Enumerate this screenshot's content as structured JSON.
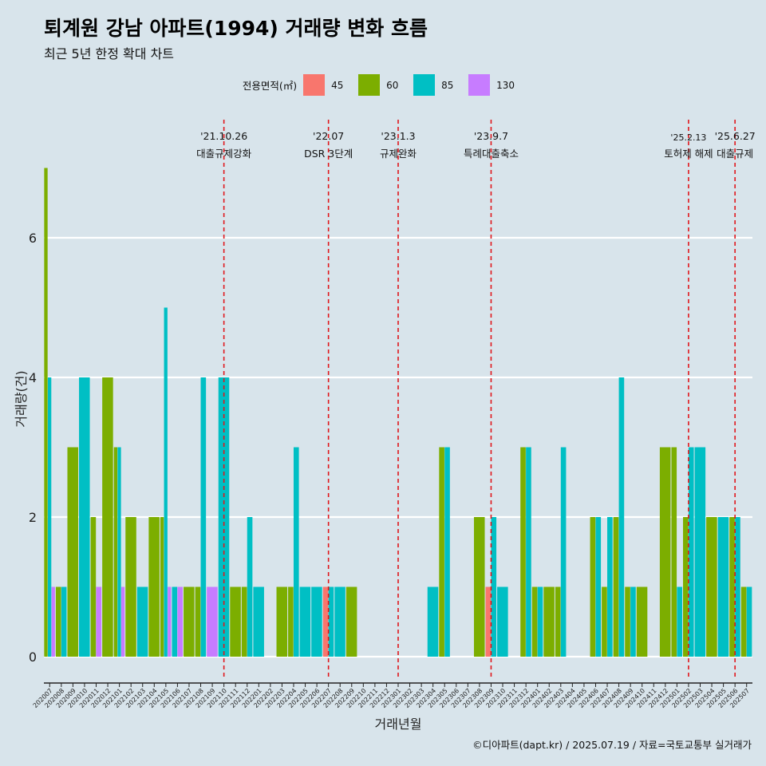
{
  "title": "퇴계원 강남 아파트(1994) 거래량 변화 흐름",
  "subtitle": "최근 5년 한정 확대 차트",
  "caption": "©디아파트(dapt.kr) / 2025.07.19 / 자료=국토교통부 실거래가",
  "legend": {
    "title": "전용면적(㎡)",
    "items": [
      {
        "label": "45",
        "color": "#f8766d"
      },
      {
        "label": "60",
        "color": "#7cae00"
      },
      {
        "label": "85",
        "color": "#00bfc4"
      },
      {
        "label": "130",
        "color": "#c77cff"
      }
    ]
  },
  "chart_data": {
    "type": "bar",
    "xlabel": "거래년월",
    "ylabel": "거래량(건)",
    "yticks": [
      0,
      2,
      4,
      6
    ],
    "ylim": [
      0,
      7
    ],
    "categories": [
      "202007",
      "202008",
      "202009",
      "202010",
      "202011",
      "202012",
      "202101",
      "202102",
      "202103",
      "202104",
      "202105",
      "202106",
      "202107",
      "202108",
      "202109",
      "202110",
      "202111",
      "202112",
      "202201",
      "202202",
      "202203",
      "202204",
      "202205",
      "202206",
      "202207",
      "202208",
      "202209",
      "202210",
      "202211",
      "202212",
      "202301",
      "202302",
      "202303",
      "202304",
      "202305",
      "202306",
      "202307",
      "202308",
      "202309",
      "202310",
      "202311",
      "202312",
      "202401",
      "202402",
      "202403",
      "202404",
      "202405",
      "202406",
      "202407",
      "202408",
      "202409",
      "202410",
      "202411",
      "202412",
      "202501",
      "202502",
      "202503",
      "202504",
      "202505",
      "202506",
      "202507"
    ],
    "series": [
      {
        "name": "45",
        "color": "#f8766d",
        "values": [
          0,
          0,
          0,
          0,
          0,
          0,
          0,
          0,
          0,
          0,
          0,
          0,
          0,
          0,
          0,
          0,
          0,
          0,
          0,
          0,
          0,
          0,
          0,
          0,
          1,
          0,
          0,
          0,
          0,
          0,
          0,
          0,
          0,
          0,
          0,
          0,
          0,
          0,
          1,
          0,
          0,
          0,
          0,
          0,
          0,
          0,
          0,
          0,
          0,
          0,
          0,
          0,
          0,
          0,
          0,
          0,
          0,
          0,
          0,
          0,
          0
        ]
      },
      {
        "name": "60",
        "color": "#7cae00",
        "values": [
          7,
          1,
          3,
          0,
          2,
          4,
          3,
          2,
          0,
          2,
          2,
          0,
          1,
          1,
          0,
          0,
          1,
          1,
          0,
          0,
          1,
          1,
          0,
          0,
          0,
          0,
          1,
          0,
          0,
          0,
          0,
          0,
          0,
          0,
          3,
          0,
          0,
          2,
          0,
          0,
          0,
          3,
          1,
          1,
          1,
          0,
          0,
          2,
          1,
          2,
          1,
          1,
          0,
          3,
          3,
          2,
          0,
          2,
          0,
          2,
          1
        ]
      },
      {
        "name": "85",
        "color": "#00bfc4",
        "values": [
          4,
          1,
          0,
          4,
          0,
          0,
          3,
          0,
          1,
          0,
          5,
          1,
          0,
          4,
          0,
          4,
          0,
          2,
          1,
          0,
          0,
          3,
          1,
          1,
          1,
          1,
          0,
          0,
          0,
          0,
          0,
          0,
          0,
          1,
          3,
          0,
          0,
          0,
          2,
          1,
          0,
          3,
          1,
          0,
          3,
          0,
          0,
          2,
          2,
          4,
          1,
          0,
          0,
          0,
          1,
          3,
          3,
          0,
          2,
          2,
          1
        ]
      },
      {
        "name": "130",
        "color": "#c77cff",
        "values": [
          1,
          0,
          0,
          0,
          1,
          0,
          1,
          0,
          0,
          0,
          1,
          1,
          0,
          0,
          1,
          0,
          0,
          0,
          0,
          0,
          0,
          0,
          0,
          0,
          0,
          0,
          0,
          0,
          0,
          0,
          0,
          0,
          0,
          0,
          0,
          0,
          0,
          0,
          0,
          0,
          0,
          0,
          0,
          0,
          0,
          0,
          0,
          0,
          0,
          0,
          0,
          0,
          0,
          0,
          0,
          0,
          0,
          0,
          0,
          0,
          0
        ]
      }
    ],
    "events": [
      {
        "date": "'21.10.26",
        "label": "대출규제강화",
        "at": "202110"
      },
      {
        "date": "'22.07",
        "label": "DSR 3단계",
        "at": "202207"
      },
      {
        "date": "'23.1.3",
        "label": "규제완화",
        "at": "202301"
      },
      {
        "date": "'23.9.7",
        "label": "특례대출축소",
        "at": "202309"
      },
      {
        "date": "'25.2.13",
        "label": "토허제 해제",
        "at": "202502"
      },
      {
        "date": "'25.6.27",
        "label": "대출규제",
        "at": "202506"
      }
    ],
    "grid": true,
    "legend_position": "top"
  }
}
